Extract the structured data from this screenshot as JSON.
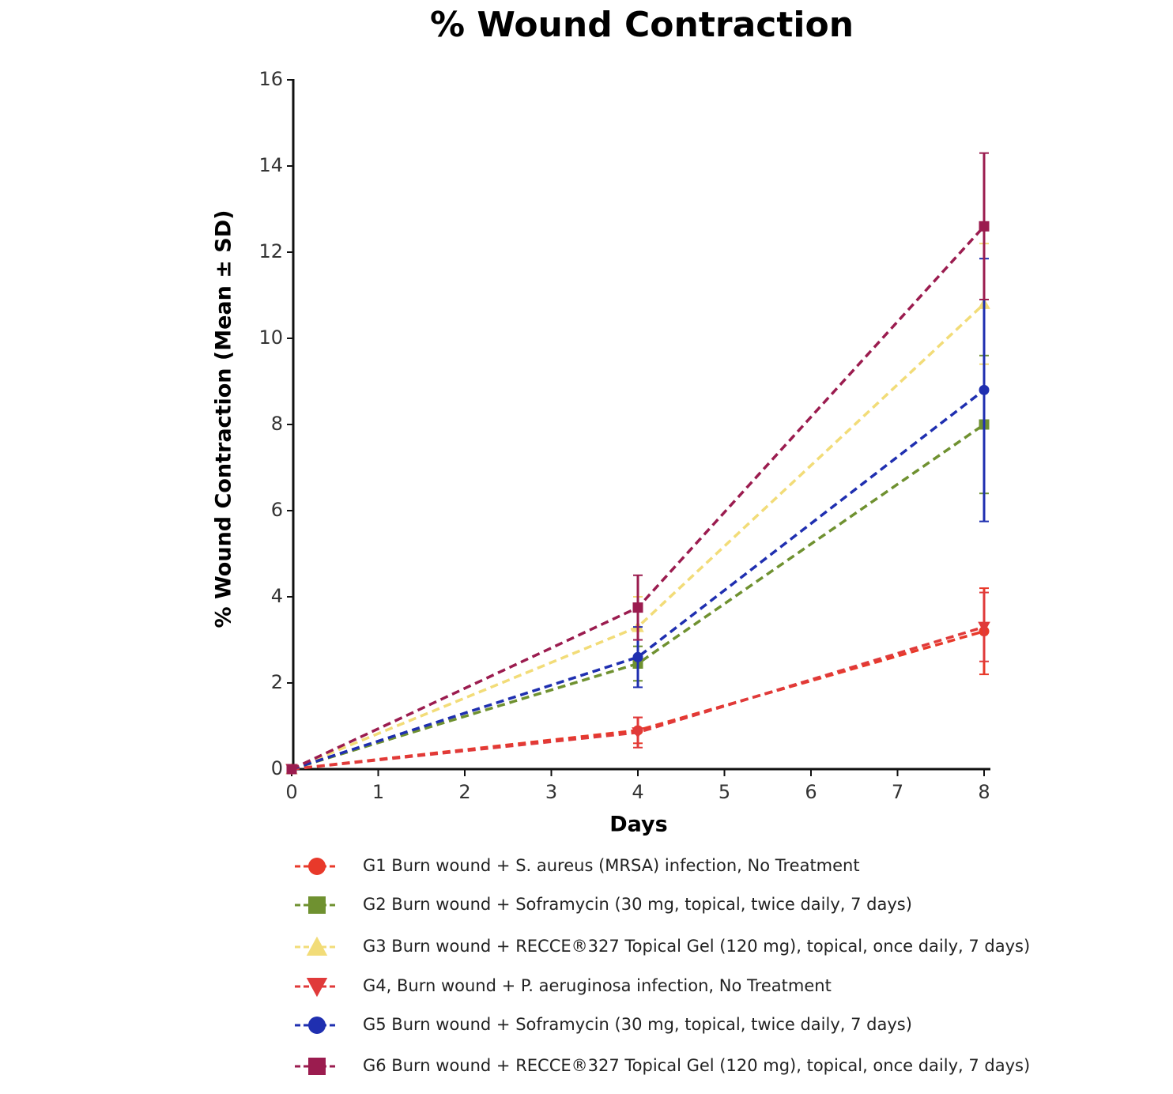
{
  "chart_data": {
    "type": "line",
    "title": "% Wound Contraction",
    "x_label": "Days",
    "y_label": "% Wound Contraction (Mean ± SD)",
    "x": [
      0,
      4,
      8
    ],
    "xlim": [
      0,
      8
    ],
    "xticks": [
      0,
      1,
      2,
      3,
      4,
      5,
      6,
      7,
      8
    ],
    "ylim": [
      0,
      16
    ],
    "yticks": [
      0,
      2,
      4,
      6,
      8,
      10,
      12,
      14,
      16
    ],
    "grid": false,
    "legend": "bottom",
    "series": [
      {
        "name": "G1 Burn wound + S. aureus (MRSA) infection, No Treatment",
        "color": "#e8392a",
        "marker": "circle",
        "values": [
          0,
          0.9,
          3.2
        ],
        "errors": [
          0,
          0.3,
          1.0
        ]
      },
      {
        "name": "G2 Burn wound + Soframycin (30 mg, topical, twice daily, 7 days)",
        "color": "#6f9130",
        "marker": "square",
        "values": [
          0,
          2.45,
          8.0
        ],
        "errors": [
          0,
          0.4,
          1.6
        ]
      },
      {
        "name": "G3 Burn wound + RECCE®327 Topical Gel (120 mg), topical, once daily, 7 days)",
        "color": "#f2dc78",
        "marker": "triangle",
        "values": [
          0,
          3.3,
          10.8
        ],
        "errors": [
          0,
          0.7,
          1.4
        ]
      },
      {
        "name": "G4, Burn wound + P. aeruginosa infection, No Treatment",
        "color": "#e03a3a",
        "marker": "triangle-down",
        "values": [
          0,
          0.85,
          3.3
        ],
        "errors": [
          0,
          0.35,
          0.8
        ]
      },
      {
        "name": "G5 Burn wound + Soframycin (30 mg, topical, twice daily, 7 days)",
        "color": "#1f2fb0",
        "marker": "circle",
        "values": [
          0,
          2.6,
          8.8
        ],
        "errors": [
          0,
          0.7,
          3.05
        ]
      },
      {
        "name": "G6 Burn wound + RECCE®327 Topical Gel (120 mg), topical, once daily, 7 days)",
        "color": "#9b1c4f",
        "marker": "square",
        "values": [
          0,
          3.75,
          12.6
        ],
        "errors": [
          0,
          0.75,
          1.7
        ]
      }
    ]
  }
}
